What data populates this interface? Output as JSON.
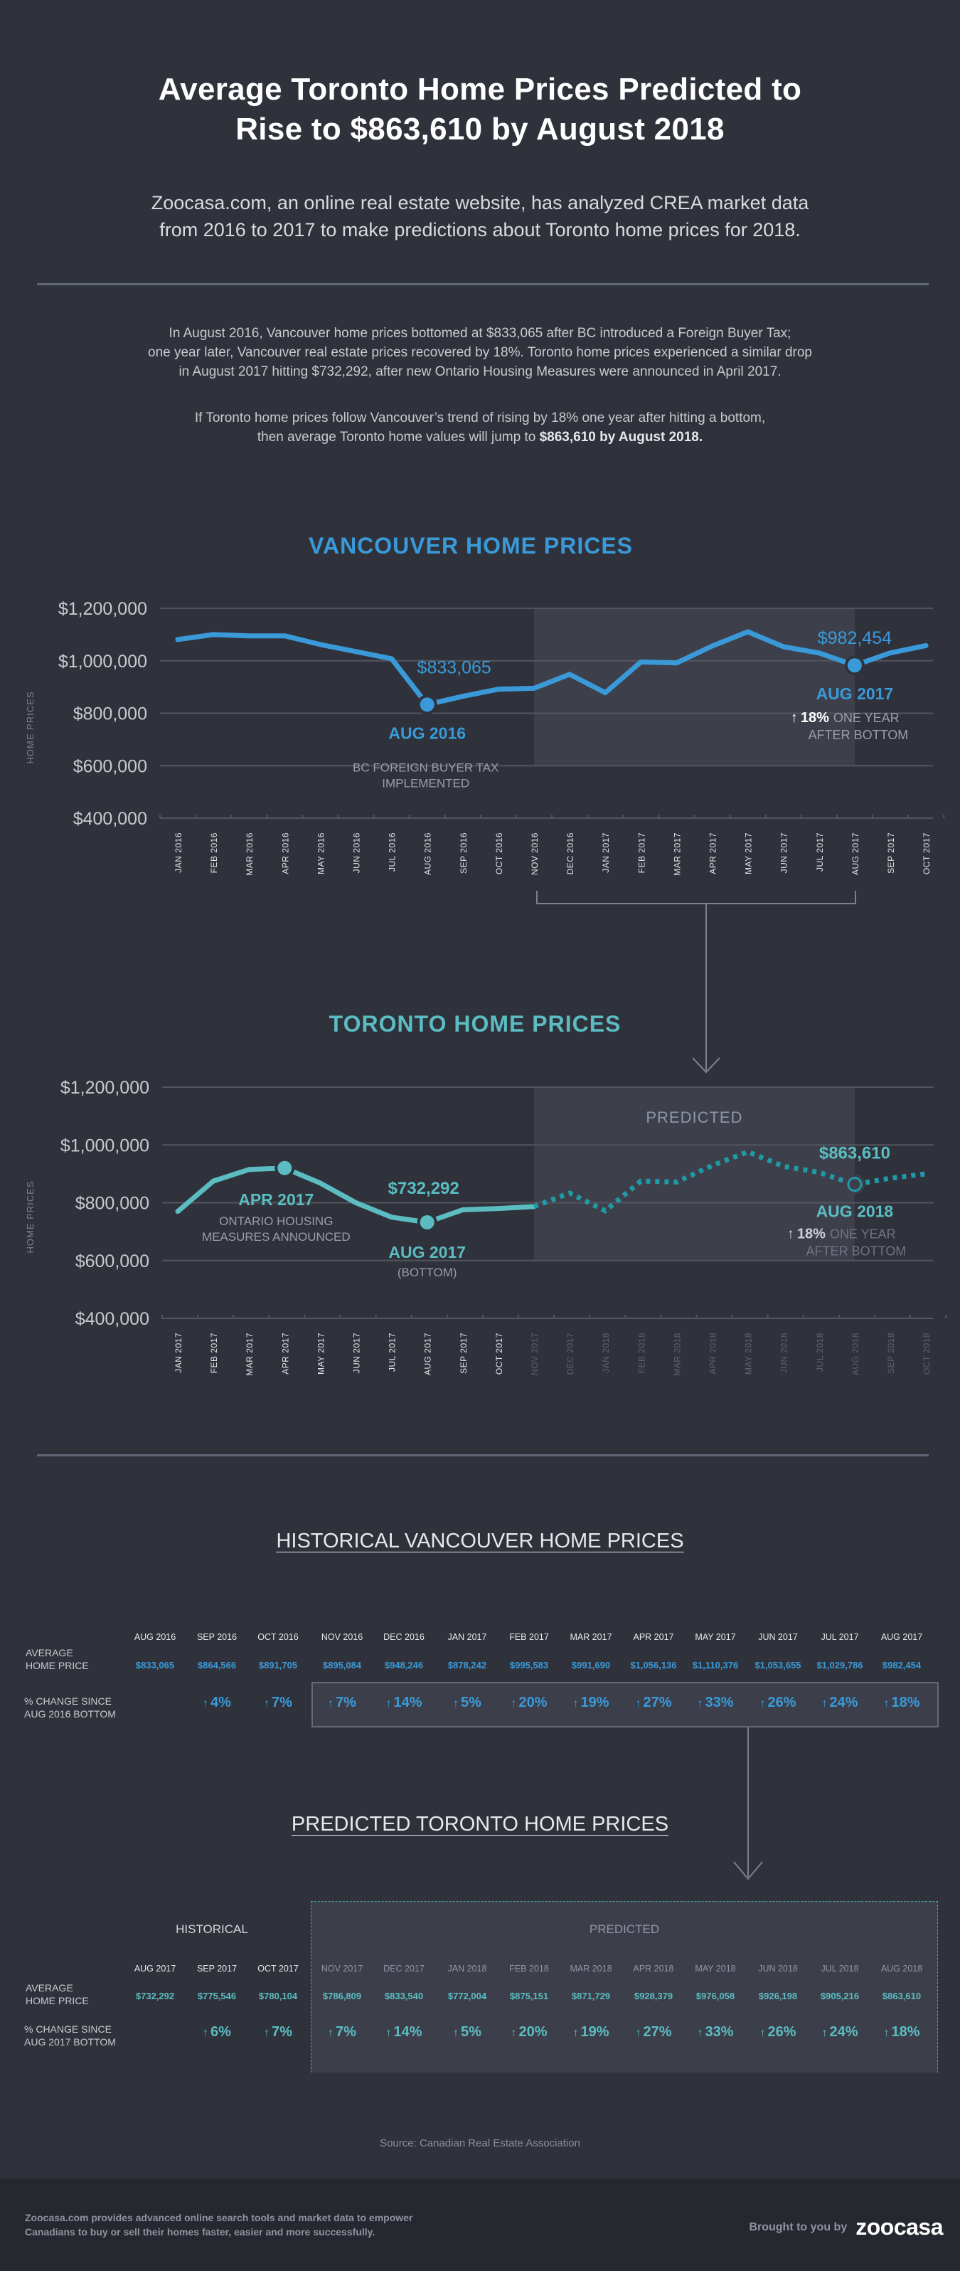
{
  "header": {
    "title_line1": "Average Toronto Home Prices Predicted to",
    "title_line2": "Rise to $863,610 by August 2018",
    "subtitle_line1": "Zoocasa.com, an online real estate website, has analyzed CREA market data",
    "subtitle_line2": "from 2016 to 2017 to make predictions about Toronto home prices for 2018."
  },
  "intro": {
    "p1_line1": "In August 2016, Vancouver home prices bottomed at $833,065 after BC introduced a Foreign Buyer Tax;",
    "p1_line2": "one year later, Vancouver real estate prices recovered by 18%. Toronto home prices experienced a similar drop",
    "p1_line3": "in August 2017 hitting $732,292, after new Ontario Housing Measures were announced in April 2017.",
    "p2_line1": "If Toronto home prices follow Vancouver’s trend of rising by 18% one year after hitting a bottom,",
    "p2_line2_plain": "then average Toronto home values will jump to ",
    "p2_line2_bold": "$863,610 by August 2018."
  },
  "colors": {
    "background": "#2f323b",
    "vancouver_blue": "#3a9ad9",
    "toronto_teal": "#5bbcc2",
    "toronto_predicted": "#1f9aa6",
    "grid": "#52555e",
    "shade": "#3d404b",
    "footer_bg": "#262830"
  },
  "chart_data": [
    {
      "type": "line",
      "title": "VANCOUVER HOME PRICES",
      "ylabel": "HOME PRICES",
      "xlabel": "",
      "ylim": [
        400000,
        1200000
      ],
      "yticks": [
        "$400,000",
        "$600,000",
        "$800,000",
        "$1,000,000",
        "$1,200,000"
      ],
      "ytick_values": [
        400000,
        600000,
        800000,
        1000000,
        1200000
      ],
      "grid": true,
      "categories": [
        "JAN 2016",
        "FEB 2016",
        "MAR 2016",
        "APR 2016",
        "MAY 2016",
        "JUN 2016",
        "JUL 2016",
        "AUG 2016",
        "SEP 2016",
        "OCT 2016",
        "NOV 2016",
        "DEC 2016",
        "JAN 2017",
        "FEB 2017",
        "MAR 2017",
        "APR 2017",
        "MAY 2017",
        "JUN 2017",
        "JUL 2017",
        "AUG 2017",
        "SEP 2017",
        "OCT 2017"
      ],
      "series": [
        {
          "name": "Vancouver average home price",
          "values": [
            1081000,
            1100000,
            1095000,
            1095000,
            1062000,
            1035000,
            1008000,
            833065,
            864566,
            891705,
            895084,
            948246,
            878242,
            995583,
            991690,
            1056136,
            1110376,
            1053655,
            1029786,
            982454,
            1030000,
            1058000
          ]
        }
      ],
      "shaded_range": [
        "NOV 2016",
        "AUG 2017"
      ],
      "annotations": [
        {
          "at": "AUG 2016",
          "value_label": "$833,065",
          "date_label": "AUG 2016",
          "note_line1": "BC FOREIGN BUYER TAX",
          "note_line2": "IMPLEMENTED"
        },
        {
          "at": "AUG 2017",
          "value_label": "$982,454",
          "date_label": "AUG 2017",
          "pct": "18%",
          "note_line1": "ONE YEAR",
          "note_line2": "AFTER BOTTOM"
        }
      ]
    },
    {
      "type": "line",
      "title": "TORONTO HOME PRICES",
      "ylabel": "HOME PRICES",
      "xlabel": "",
      "ylim": [
        400000,
        1200000
      ],
      "yticks": [
        "$400,000",
        "$600,000",
        "$800,000",
        "$1,000,000",
        "$1,200,000"
      ],
      "ytick_values": [
        400000,
        600000,
        800000,
        1000000,
        1200000
      ],
      "grid": true,
      "categories": [
        "JAN 2017",
        "FEB 2017",
        "MAR 2017",
        "APR 2017",
        "MAY 2017",
        "JUN 2017",
        "JUL 2017",
        "AUG 2017",
        "SEP 2017",
        "OCT 2017",
        "NOV 2017",
        "DEC 2017",
        "JAN 2018",
        "FEB 2018",
        "MAR 2018",
        "APR 2018",
        "MAY 2018",
        "JUN 2018",
        "JUL 2018",
        "AUG 2018",
        "SEP 2018",
        "OCT 2018"
      ],
      "series": [
        {
          "name": "Historical",
          "style": "solid",
          "values": [
            770000,
            875000,
            915000,
            920000,
            868000,
            800000,
            750000,
            732292,
            775546,
            780104,
            786809,
            null,
            null,
            null,
            null,
            null,
            null,
            null,
            null,
            null,
            null,
            null
          ]
        },
        {
          "name": "Predicted",
          "style": "dotted",
          "values": [
            null,
            null,
            null,
            null,
            null,
            null,
            null,
            null,
            null,
            null,
            786809,
            833540,
            772004,
            875151,
            871729,
            928379,
            976058,
            926198,
            905216,
            863610,
            885000,
            900000
          ]
        }
      ],
      "shaded_range": [
        "NOV 2017",
        "AUG 2018"
      ],
      "shaded_label": "PREDICTED",
      "annotations": [
        {
          "at": "APR 2017",
          "date_label": "APR 2017",
          "note_line1": "ONTARIO HOUSING",
          "note_line2": "MEASURES ANNOUNCED"
        },
        {
          "at": "AUG 2017",
          "value_label": "$732,292",
          "date_label": "AUG 2017",
          "note_line1": "(BOTTOM)"
        },
        {
          "at": "AUG 2018",
          "value_label": "$863,610",
          "date_label": "AUG 2018",
          "pct": "18%",
          "note_line1": "ONE YEAR",
          "note_line2": "AFTER BOTTOM"
        }
      ]
    }
  ],
  "vancouver_table": {
    "title": "HISTORICAL VANCOUVER HOME PRICES",
    "row_price_label_1": "AVERAGE",
    "row_price_label_2": "HOME PRICE",
    "row_pct_label_1": "% CHANGE SINCE",
    "row_pct_label_2": "AUG 2016 BOTTOM",
    "months": [
      "AUG 2016",
      "SEP 2016",
      "OCT 2016",
      "NOV 2016",
      "DEC 2016",
      "JAN 2017",
      "FEB 2017",
      "MAR 2017",
      "APR 2017",
      "MAY 2017",
      "JUN 2017",
      "JUL 2017",
      "AUG 2017"
    ],
    "prices": [
      "$833,065",
      "$864,566",
      "$891,705",
      "$895,084",
      "$948,246",
      "$878,242",
      "$995,583",
      "$991,690",
      "$1,056,136",
      "$1,110,376",
      "$1,053,655",
      "$1,029,786",
      "$982,454"
    ],
    "pcts": [
      "",
      "4%",
      "7%",
      "7%",
      "14%",
      "5%",
      "20%",
      "19%",
      "27%",
      "33%",
      "26%",
      "24%",
      "18%"
    ]
  },
  "toronto_table": {
    "title": "PREDICTED TORONTO HOME PRICES",
    "historical_label": "HISTORICAL",
    "predicted_label": "PREDICTED",
    "row_price_label_1": "AVERAGE",
    "row_price_label_2": "HOME PRICE",
    "row_pct_label_1": "% CHANGE SINCE",
    "row_pct_label_2": "AUG 2017 BOTTOM",
    "months": [
      "AUG 2017",
      "SEP 2017",
      "OCT 2017",
      "NOV 2017",
      "DEC 2017",
      "JAN 2018",
      "FEB 2018",
      "MAR 2018",
      "APR 2018",
      "MAY 2018",
      "JUN 2018",
      "JUL 2018",
      "AUG 2018"
    ],
    "prices": [
      "$732,292",
      "$775,546",
      "$780,104",
      "$786,809",
      "$833,540",
      "$772,004",
      "$875,151",
      "$871,729",
      "$928,379",
      "$976,058",
      "$926,198",
      "$905,216",
      "$863,610"
    ],
    "pcts": [
      "",
      "6%",
      "7%",
      "7%",
      "14%",
      "5%",
      "20%",
      "19%",
      "27%",
      "33%",
      "26%",
      "24%",
      "18%"
    ]
  },
  "source": "Source: Canadian Real Estate Association",
  "footer": {
    "blurb_line1": "Zoocasa.com provides advanced online search tools and market data to empower",
    "blurb_line2": "Canadians to buy or sell their homes faster, easier and more successfully.",
    "brought_by": "Brought to you by",
    "logo_text": "zoocasa"
  }
}
